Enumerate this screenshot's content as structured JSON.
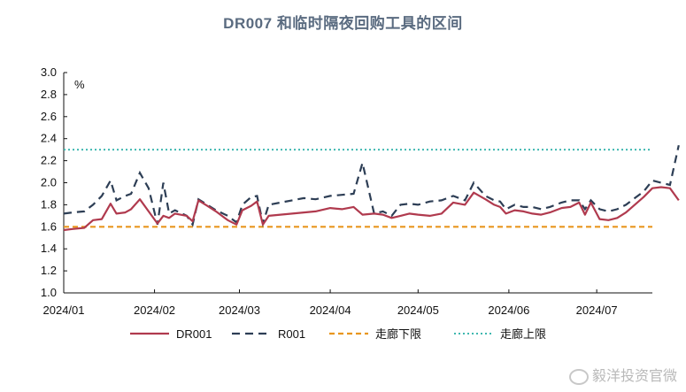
{
  "chart_data": {
    "type": "line",
    "title": "DR007 和临时隔夜回购工具的区间",
    "unit": "%",
    "ylim": [
      1.0,
      3.0
    ],
    "yticks": [
      "1.0",
      "1.2",
      "1.4",
      "1.6",
      "1.8",
      "2.0",
      "2.2",
      "2.4",
      "2.6",
      "2.8",
      "3.0"
    ],
    "xlim": [
      "2024-01-01",
      "2024-07-20"
    ],
    "xticks": [
      {
        "date": "2024-01-01",
        "label": "2024/01"
      },
      {
        "date": "2024-02-01",
        "label": "2024/02"
      },
      {
        "date": "2024-03-01",
        "label": "2024/03"
      },
      {
        "date": "2024-04-01",
        "label": "2024/04"
      },
      {
        "date": "2024-05-01",
        "label": "2024/05"
      },
      {
        "date": "2024-06-01",
        "label": "2024/06"
      },
      {
        "date": "2024-07-01",
        "label": "2024/07"
      }
    ],
    "legend_position": "bottom",
    "grid": false,
    "series": [
      {
        "name": "DR001",
        "style": "solid",
        "color": "#b03a4e",
        "points": [
          [
            "2024-01-01",
            1.57
          ],
          [
            "2024-01-04",
            1.58
          ],
          [
            "2024-01-08",
            1.59
          ],
          [
            "2024-01-11",
            1.66
          ],
          [
            "2024-01-14",
            1.67
          ],
          [
            "2024-01-17",
            1.81
          ],
          [
            "2024-01-19",
            1.72
          ],
          [
            "2024-01-22",
            1.73
          ],
          [
            "2024-01-24",
            1.76
          ],
          [
            "2024-01-27",
            1.85
          ],
          [
            "2024-01-30",
            1.74
          ],
          [
            "2024-02-02",
            1.63
          ],
          [
            "2024-02-04",
            1.7
          ],
          [
            "2024-02-06",
            1.68
          ],
          [
            "2024-02-08",
            1.72
          ],
          [
            "2024-02-12",
            1.7
          ],
          [
            "2024-02-14",
            1.65
          ],
          [
            "2024-02-16",
            1.84
          ],
          [
            "2024-02-19",
            1.79
          ],
          [
            "2024-02-22",
            1.74
          ],
          [
            "2024-02-26",
            1.66
          ],
          [
            "2024-02-29",
            1.62
          ],
          [
            "2024-03-02",
            1.75
          ],
          [
            "2024-03-05",
            1.79
          ],
          [
            "2024-03-07",
            1.83
          ],
          [
            "2024-03-09",
            1.62
          ],
          [
            "2024-03-11",
            1.7
          ],
          [
            "2024-03-15",
            1.71
          ],
          [
            "2024-03-19",
            1.72
          ],
          [
            "2024-03-23",
            1.73
          ],
          [
            "2024-03-27",
            1.74
          ],
          [
            "2024-04-01",
            1.77
          ],
          [
            "2024-04-05",
            1.76
          ],
          [
            "2024-04-09",
            1.78
          ],
          [
            "2024-04-12",
            1.71
          ],
          [
            "2024-04-16",
            1.72
          ],
          [
            "2024-04-19",
            1.71
          ],
          [
            "2024-04-22",
            1.68
          ],
          [
            "2024-04-25",
            1.7
          ],
          [
            "2024-04-28",
            1.72
          ],
          [
            "2024-05-01",
            1.71
          ],
          [
            "2024-05-05",
            1.7
          ],
          [
            "2024-05-09",
            1.72
          ],
          [
            "2024-05-13",
            1.82
          ],
          [
            "2024-05-17",
            1.8
          ],
          [
            "2024-05-20",
            1.91
          ],
          [
            "2024-05-24",
            1.85
          ],
          [
            "2024-05-27",
            1.8
          ],
          [
            "2024-05-29",
            1.78
          ],
          [
            "2024-05-31",
            1.72
          ],
          [
            "2024-06-03",
            1.75
          ],
          [
            "2024-06-06",
            1.74
          ],
          [
            "2024-06-09",
            1.72
          ],
          [
            "2024-06-12",
            1.71
          ],
          [
            "2024-06-15",
            1.73
          ],
          [
            "2024-06-19",
            1.77
          ],
          [
            "2024-06-22",
            1.78
          ],
          [
            "2024-06-25",
            1.82
          ],
          [
            "2024-06-27",
            1.71
          ],
          [
            "2024-06-29",
            1.82
          ],
          [
            "2024-07-02",
            1.67
          ],
          [
            "2024-07-05",
            1.66
          ],
          [
            "2024-07-08",
            1.68
          ],
          [
            "2024-07-11",
            1.73
          ],
          [
            "2024-07-14",
            1.8
          ],
          [
            "2024-07-17",
            1.87
          ],
          [
            "2024-07-20",
            1.95
          ],
          [
            "2024-07-23",
            1.96
          ],
          [
            "2024-07-26",
            1.95
          ],
          [
            "2024-07-29",
            1.84
          ]
        ]
      },
      {
        "name": "R001",
        "style": "dashed",
        "color": "#2d3e55",
        "points": [
          [
            "2024-01-01",
            1.72
          ],
          [
            "2024-01-04",
            1.73
          ],
          [
            "2024-01-08",
            1.74
          ],
          [
            "2024-01-11",
            1.8
          ],
          [
            "2024-01-14",
            1.88
          ],
          [
            "2024-01-17",
            2.02
          ],
          [
            "2024-01-19",
            1.84
          ],
          [
            "2024-01-22",
            1.88
          ],
          [
            "2024-01-24",
            1.9
          ],
          [
            "2024-01-27",
            2.09
          ],
          [
            "2024-01-30",
            1.95
          ],
          [
            "2024-02-02",
            1.62
          ],
          [
            "2024-02-04",
            2.0
          ],
          [
            "2024-02-06",
            1.72
          ],
          [
            "2024-02-08",
            1.75
          ],
          [
            "2024-02-12",
            1.7
          ],
          [
            "2024-02-14",
            1.62
          ],
          [
            "2024-02-16",
            1.85
          ],
          [
            "2024-02-19",
            1.8
          ],
          [
            "2024-02-22",
            1.75
          ],
          [
            "2024-02-26",
            1.7
          ],
          [
            "2024-02-29",
            1.64
          ],
          [
            "2024-03-02",
            1.8
          ],
          [
            "2024-03-05",
            1.87
          ],
          [
            "2024-03-07",
            1.88
          ],
          [
            "2024-03-09",
            1.63
          ],
          [
            "2024-03-11",
            1.8
          ],
          [
            "2024-03-15",
            1.82
          ],
          [
            "2024-03-19",
            1.84
          ],
          [
            "2024-03-23",
            1.86
          ],
          [
            "2024-03-27",
            1.85
          ],
          [
            "2024-04-01",
            1.88
          ],
          [
            "2024-04-05",
            1.89
          ],
          [
            "2024-04-09",
            1.9
          ],
          [
            "2024-04-12",
            2.18
          ],
          [
            "2024-04-16",
            1.72
          ],
          [
            "2024-04-19",
            1.74
          ],
          [
            "2024-04-22",
            1.7
          ],
          [
            "2024-04-25",
            1.8
          ],
          [
            "2024-04-28",
            1.81
          ],
          [
            "2024-05-01",
            1.8
          ],
          [
            "2024-05-05",
            1.83
          ],
          [
            "2024-05-09",
            1.84
          ],
          [
            "2024-05-13",
            1.88
          ],
          [
            "2024-05-17",
            1.84
          ],
          [
            "2024-05-20",
            2.0
          ],
          [
            "2024-05-24",
            1.88
          ],
          [
            "2024-05-27",
            1.84
          ],
          [
            "2024-05-29",
            1.83
          ],
          [
            "2024-05-31",
            1.76
          ],
          [
            "2024-06-03",
            1.8
          ],
          [
            "2024-06-06",
            1.78
          ],
          [
            "2024-06-09",
            1.78
          ],
          [
            "2024-06-12",
            1.76
          ],
          [
            "2024-06-15",
            1.78
          ],
          [
            "2024-06-19",
            1.82
          ],
          [
            "2024-06-22",
            1.84
          ],
          [
            "2024-06-25",
            1.84
          ],
          [
            "2024-06-27",
            1.76
          ],
          [
            "2024-06-29",
            1.84
          ],
          [
            "2024-07-02",
            1.76
          ],
          [
            "2024-07-05",
            1.74
          ],
          [
            "2024-07-08",
            1.76
          ],
          [
            "2024-07-11",
            1.8
          ],
          [
            "2024-07-14",
            1.86
          ],
          [
            "2024-07-17",
            1.92
          ],
          [
            "2024-07-20",
            2.02
          ],
          [
            "2024-07-23",
            2.0
          ],
          [
            "2024-07-26",
            1.98
          ],
          [
            "2024-07-29",
            2.34
          ]
        ]
      },
      {
        "name": "走廊下限",
        "style": "orange-dashed",
        "color": "#e8961e",
        "constant": 1.6
      },
      {
        "name": "走廊上限",
        "style": "dotted",
        "color": "#3fb8b0",
        "constant": 2.3
      }
    ]
  },
  "watermark": {
    "text": "毅洋投资官微",
    "icon": "weibo-icon"
  }
}
